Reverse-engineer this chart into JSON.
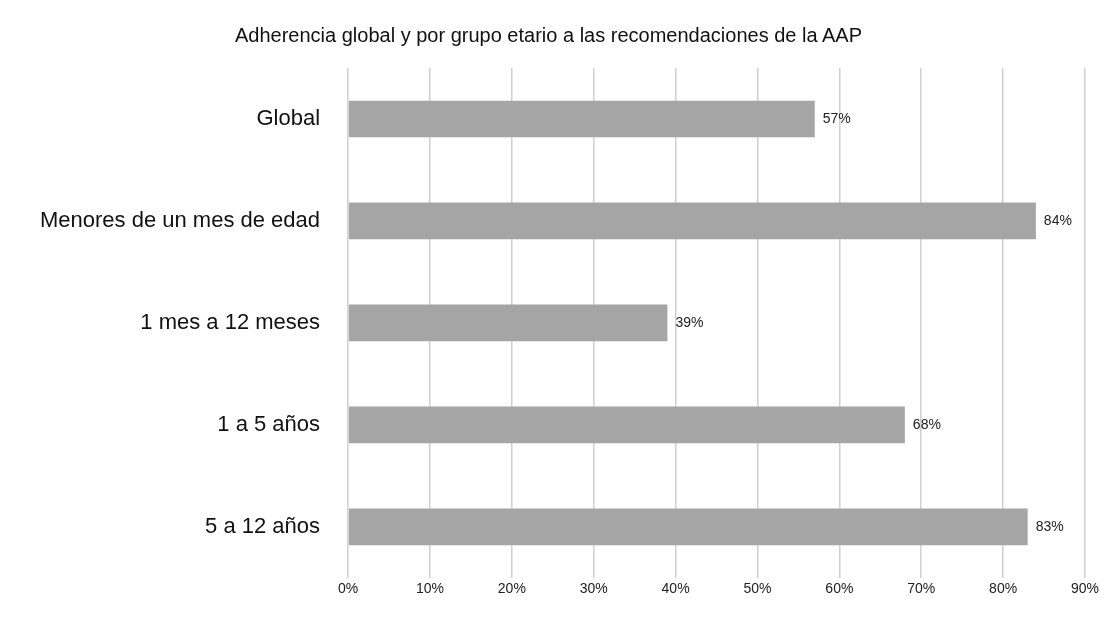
{
  "chart_data": {
    "type": "bar",
    "orientation": "horizontal",
    "title": "Adherencia global y por grupo etario a las recomendaciones de la AAP",
    "categories": [
      "Global",
      "Menores de un mes de edad",
      "1 mes a 12 meses",
      "1 a 5 años",
      "5 a 12 años"
    ],
    "values": [
      57,
      84,
      39,
      68,
      83
    ],
    "color": "#a5a5a5",
    "value_labels": [
      "57%",
      "84%",
      "39%",
      "68%",
      "83%"
    ],
    "xlim": [
      0,
      90
    ],
    "xticks": [
      {
        "value": 0,
        "label": "0%"
      },
      {
        "value": 10,
        "label": "10%"
      },
      {
        "value": 20,
        "label": "20%"
      },
      {
        "value": 30,
        "label": "30%"
      },
      {
        "value": 40,
        "label": "40%"
      },
      {
        "value": 50,
        "label": "50%"
      },
      {
        "value": 60,
        "label": "60%"
      },
      {
        "value": 70,
        "label": "70%"
      },
      {
        "value": 80,
        "label": "80%"
      },
      {
        "value": 90,
        "label": "90%"
      }
    ],
    "grid": "x",
    "legend": false
  }
}
